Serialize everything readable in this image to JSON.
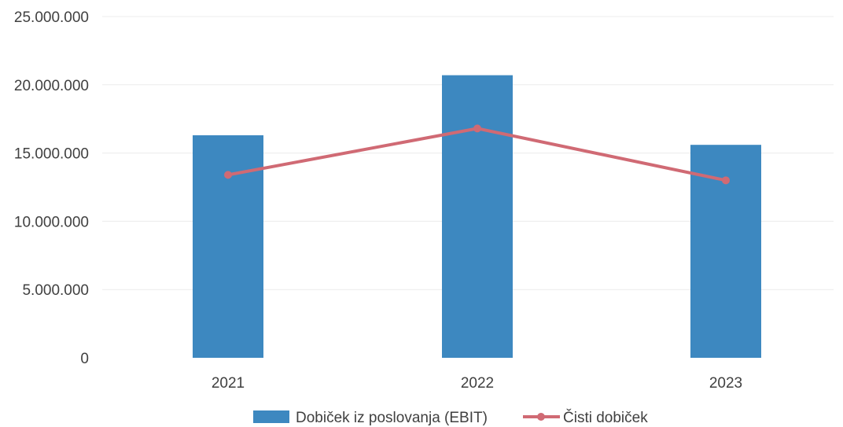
{
  "chart_data": {
    "type": "bar",
    "categories": [
      "2021",
      "2022",
      "2023"
    ],
    "series": [
      {
        "name": "Dobiček iz poslovanja (EBIT)",
        "kind": "bar",
        "color": "#3d88c0",
        "values": [
          16300000,
          20700000,
          15600000
        ]
      },
      {
        "name": "Čisti dobiček",
        "kind": "line",
        "color": "#d06a74",
        "values": [
          13400000,
          16800000,
          13000000
        ]
      }
    ],
    "ylim": [
      0,
      25000000
    ],
    "yticks": [
      0,
      5000000,
      10000000,
      15000000,
      20000000,
      25000000
    ],
    "ytick_labels": [
      "0",
      "5.000.000",
      "10.000.000",
      "15.000.000",
      "20.000.000",
      "25.000.000"
    ],
    "grid": true,
    "legend_position": "bottom",
    "title": "",
    "xlabel": "",
    "ylabel": ""
  }
}
